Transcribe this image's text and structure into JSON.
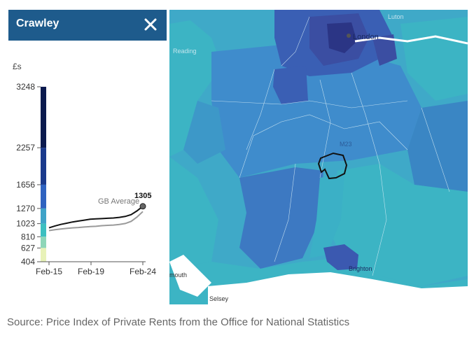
{
  "panel": {
    "title": "Crawley",
    "currency_label": "£s"
  },
  "legend": {
    "ticks": [
      "3248",
      "2257",
      "1656",
      "1270",
      "1023",
      "810",
      "627",
      "404"
    ],
    "values": [
      3248,
      2257,
      1656,
      1270,
      1023,
      810,
      627,
      404
    ],
    "colors": [
      "#0b1a4e",
      "#1a3a8c",
      "#2f63c0",
      "#3fa3c8",
      "#3cbfc0",
      "#8ed6b8",
      "#e8f2b8"
    ]
  },
  "chart_data": {
    "type": "line",
    "x_ticks": [
      "Feb-15",
      "Feb-19",
      "Feb-24"
    ],
    "ylim": [
      404,
      3248
    ],
    "series": [
      {
        "values": [
          955,
          985,
          1010,
          1030,
          1050,
          1065,
          1080,
          1095,
          1100,
          1105,
          1110,
          1115,
          1125,
          1140,
          1170,
          1230,
          1305
        ],
        "color": "#111111"
      },
      {
        "name": "GB Average",
        "values": [
          910,
          925,
          935,
          945,
          955,
          960,
          968,
          975,
          980,
          990,
          995,
          1000,
          1010,
          1025,
          1060,
          1130,
          1220
        ],
        "color": "#9a9a9a"
      }
    ],
    "end_label": "1305"
  },
  "map": {
    "labels": {
      "london": "London",
      "reading": "Reading",
      "m23": "M23",
      "brighton": "Brighton",
      "selsey": "Selsey",
      "mouth": "mouth",
      "luton": "Luton"
    },
    "colors": {
      "sea": "#ffffff",
      "light": "#3cb4c4",
      "mid": "#3f8ccc",
      "dark": "#3a5fb4",
      "darker": "#3b4ea2",
      "darkest": "#2b3585",
      "river": "#ffffff",
      "outline": "#111111"
    }
  },
  "source": {
    "text": "Source: Price Index of Private Rents from the Office for National Statistics"
  }
}
